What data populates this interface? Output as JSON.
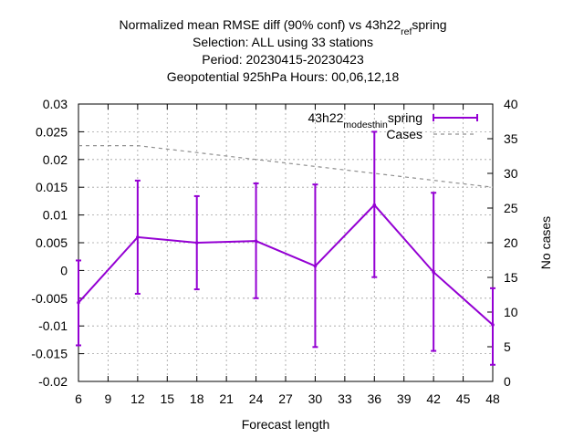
{
  "chart_data": {
    "type": "line",
    "title_lines": [
      "Normalized mean RMSE diff (90% conf) vs 43h22_ref_spring",
      "Selection: ALL using    33 stations",
      "Period: 20230415-20230423",
      "Geopotential 925hPa   Hours:  00,06,12,18"
    ],
    "xlabel": "Forecast length",
    "ylabel": "",
    "y2label": "No cases",
    "xlim": [
      6,
      48
    ],
    "ylim": [
      -0.02,
      0.03
    ],
    "y2lim": [
      0,
      40
    ],
    "xticks": [
      "6",
      "9",
      "12",
      "15",
      "18",
      "21",
      "24",
      "27",
      "30",
      "33",
      "36",
      "39",
      "42",
      "45",
      "48"
    ],
    "yticks": [
      "-0.02",
      "-0.015",
      "-0.01",
      "-0.005",
      "0",
      "0.005",
      "0.01",
      "0.015",
      "0.02",
      "0.025",
      "0.03"
    ],
    "y2ticks": [
      "0",
      "5",
      "10",
      "15",
      "20",
      "25",
      "30",
      "35",
      "40"
    ],
    "grid": true,
    "legend_position": "top-right",
    "series": [
      {
        "name": "43h22_modesthin_spring",
        "color": "#9400d3",
        "style": "errorbar-line",
        "x": [
          6,
          12,
          18,
          24,
          30,
          36,
          42,
          48
        ],
        "y": [
          -0.0058,
          0.006,
          0.005,
          0.0053,
          0.0008,
          0.0118,
          -0.0003,
          -0.0098
        ],
        "y_low": [
          -0.0135,
          -0.0042,
          -0.0034,
          -0.005,
          -0.0138,
          -0.0012,
          -0.0145,
          -0.017
        ],
        "y_high": [
          0.0018,
          0.0162,
          0.0134,
          0.0157,
          0.0155,
          0.025,
          0.014,
          -0.0032
        ]
      },
      {
        "name": "Cases",
        "color": "#909090",
        "style": "dashed",
        "axis": "y2",
        "x": [
          6,
          12,
          18,
          24,
          30,
          36,
          42,
          48
        ],
        "y": [
          34,
          34,
          33,
          32,
          31,
          30,
          29,
          28
        ]
      }
    ]
  }
}
